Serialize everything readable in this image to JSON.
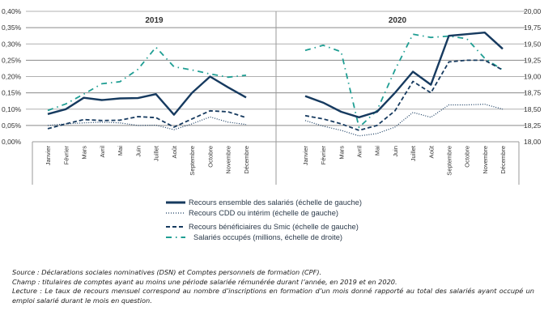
{
  "chart_data": {
    "type": "line",
    "title": "",
    "panels": [
      {
        "label": "2019",
        "categories": [
          "Janvier",
          "Février",
          "Mars",
          "Avril",
          "Mai",
          "Juin",
          "Juillet",
          "Août",
          "Septembre",
          "Octobre",
          "Novembre",
          "Décembre"
        ],
        "series": [
          {
            "name": "Recours ensemble des salariés (échelle de gauche)",
            "axis": "left",
            "values": [
              0.085,
              0.1,
              0.135,
              0.128,
              0.133,
              0.134,
              0.146,
              0.083,
              0.15,
              0.2,
              0.167,
              0.136
            ]
          },
          {
            "name": "Recours CDD ou intérim (échelle de gauche)",
            "axis": "left",
            "values": [
              0.05,
              0.055,
              0.058,
              0.06,
              0.058,
              0.05,
              0.051,
              0.037,
              0.055,
              0.076,
              0.06,
              0.053
            ]
          },
          {
            "name": "Recours bénéficiaires du Smic (échelle de gauche)",
            "axis": "left",
            "values": [
              0.04,
              0.055,
              0.068,
              0.065,
              0.066,
              0.077,
              0.074,
              0.045,
              0.07,
              0.095,
              0.092,
              0.074
            ]
          },
          {
            "name": "Salariés occupés (millions, échelle de droite)",
            "axis": "right",
            "values": [
              18.48,
              18.58,
              18.73,
              18.89,
              18.92,
              19.11,
              19.45,
              19.15,
              19.1,
              19.04,
              18.99,
              19.02
            ]
          }
        ]
      },
      {
        "label": "2020",
        "categories": [
          "Janvier",
          "Février",
          "Mars",
          "Avril",
          "Mai",
          "Juin",
          "Juillet",
          "Août",
          "Septembre",
          "Octobre",
          "Novembre",
          "Décembre"
        ],
        "series": [
          {
            "name": "Recours ensemble des salariés (échelle de gauche)",
            "axis": "left",
            "values": [
              0.14,
              0.12,
              0.092,
              0.075,
              0.092,
              0.15,
              0.215,
              0.175,
              0.325,
              0.33,
              0.335,
              0.285
            ]
          },
          {
            "name": "Recours CDD ou intérim (échelle de gauche)",
            "axis": "left",
            "values": [
              0.065,
              0.048,
              0.035,
              0.018,
              0.025,
              0.045,
              0.09,
              0.075,
              0.113,
              0.113,
              0.115,
              0.1
            ]
          },
          {
            "name": "Recours bénéficiaires du Smic (échelle de gauche)",
            "axis": "left",
            "values": [
              0.08,
              0.07,
              0.055,
              0.035,
              0.05,
              0.095,
              0.185,
              0.15,
              0.245,
              0.25,
              0.25,
              0.22
            ]
          },
          {
            "name": "Salariés occupés (millions, échelle de droite)",
            "axis": "right",
            "values": [
              19.4,
              19.48,
              19.38,
              18.22,
              18.48,
              19.1,
              19.65,
              19.6,
              19.62,
              19.58,
              19.28,
              19.1
            ]
          }
        ]
      }
    ],
    "left_axis": {
      "label": "",
      "ylim": [
        0,
        0.4
      ],
      "ticks": [
        "0,00%",
        "0,05%",
        "0,10%",
        "0,15%",
        "0,20%",
        "0,25%",
        "0,30%",
        "0,35%",
        "0,40%"
      ],
      "tick_values": [
        0,
        0.05,
        0.1,
        0.15,
        0.2,
        0.25,
        0.3,
        0.35,
        0.4
      ]
    },
    "right_axis": {
      "label": "",
      "ylim": [
        18.0,
        20.0
      ],
      "ticks": [
        "18,00",
        "18,25",
        "18,50",
        "18,75",
        "19,00",
        "19,25",
        "19,50",
        "19,75",
        "20,00"
      ],
      "tick_values": [
        18.0,
        18.25,
        18.5,
        18.75,
        19.0,
        19.25,
        19.5,
        19.75,
        20.0
      ]
    },
    "grid": true,
    "legend_position": "bottom-center",
    "legend": [
      {
        "label": "Recours ensemble des salariés (échelle de gauche)",
        "style": "solid",
        "color": "#163a5f"
      },
      {
        "label": "Recours CDD ou intérim (échelle de gauche)",
        "style": "dotted",
        "color": "#163a5f"
      },
      {
        "label": "Recours bénéficiaires du Smic (échelle de gauche)",
        "style": "dashed",
        "color": "#163a5f"
      },
      {
        "label": "Salariés occupés (millions, échelle de droite)",
        "style": "dash-dot",
        "color": "#1f9e93"
      }
    ]
  },
  "notes": {
    "source": "Source : Déclarations sociales nominatives (DSN) et Comptes personnels de formation (CPF).",
    "champ": "Champ : titulaires de comptes ayant au moins une période salariée rémunérée durant l’année, en 2019 et en 2020.",
    "lecture": "Lecture : Le taux de recours mensuel correspond au nombre d’inscriptions en formation d’un mois donné rapporté au total des salariés ayant occupé un emploi salarié durant le mois en question."
  }
}
